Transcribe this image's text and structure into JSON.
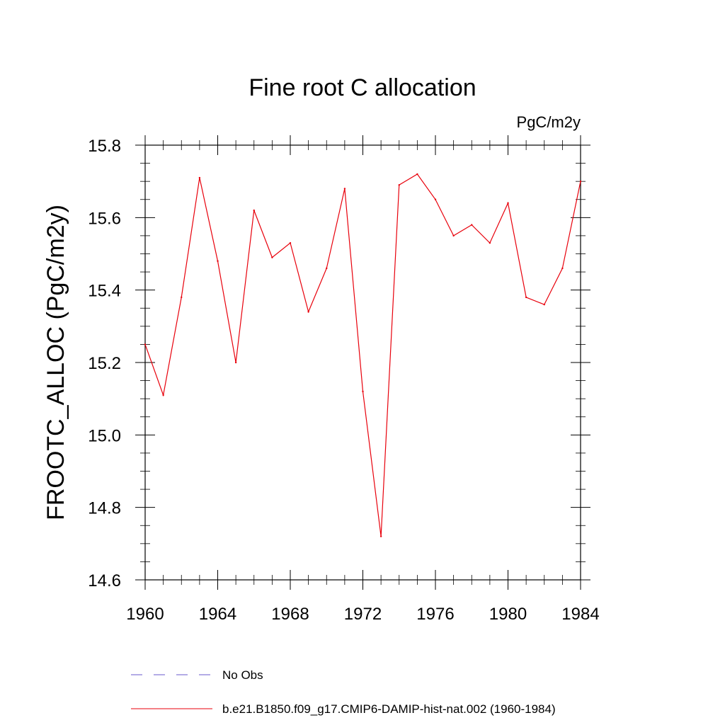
{
  "chart_data": {
    "type": "line",
    "title": "Fine root C allocation",
    "units_label": "PgC/m2y",
    "ylabel": "FROOTC_ALLOC  (PgC/m2y)",
    "xlabel": "",
    "xlim": [
      1960,
      1984
    ],
    "ylim": [
      14.6,
      15.8
    ],
    "x_ticks": [
      "1960",
      "1964",
      "1968",
      "1972",
      "1976",
      "1980",
      "1984"
    ],
    "y_ticks": [
      "14.6",
      "14.8",
      "15.0",
      "15.2",
      "15.4",
      "15.6",
      "15.8"
    ],
    "grid": false,
    "legend_position": "bottom",
    "series": [
      {
        "name": "No Obs",
        "color": "#6a5acd",
        "dash": "dashed",
        "x": [],
        "y": []
      },
      {
        "name": "b.e21.B1850.f09_g17.CMIP6-DAMIP-hist-nat.002 (1960-1984)",
        "color": "#e8000b",
        "dash": "solid",
        "x": [
          1960,
          1961,
          1962,
          1963,
          1964,
          1965,
          1966,
          1967,
          1968,
          1969,
          1970,
          1971,
          1972,
          1973,
          1974,
          1975,
          1976,
          1977,
          1978,
          1979,
          1980,
          1981,
          1982,
          1983,
          1984
        ],
        "y": [
          15.25,
          15.11,
          15.38,
          15.71,
          15.48,
          15.2,
          15.62,
          15.49,
          15.53,
          15.34,
          15.46,
          15.68,
          15.12,
          14.72,
          15.69,
          15.72,
          15.65,
          15.55,
          15.58,
          15.53,
          15.64,
          15.38,
          15.36,
          15.46,
          15.7
        ]
      }
    ]
  }
}
